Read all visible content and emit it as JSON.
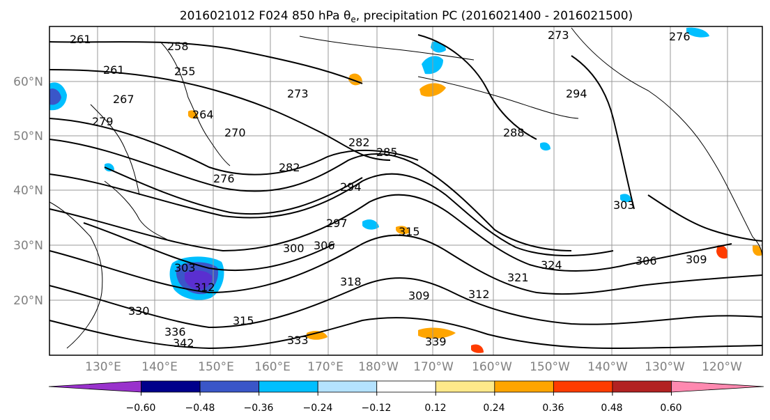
{
  "title": "2016021012 F024 850 hPa θe, precipitation PC (2016021400 - 2016021500)",
  "lat_ticks": [
    "60°N",
    "50°N",
    "40°N",
    "30°N",
    "20°N"
  ],
  "lon_ticks": [
    "130°E",
    "140°E",
    "150°E",
    "160°E",
    "170°E",
    "180°W",
    "170°W",
    "160°W",
    "150°W",
    "140°W",
    "130°W",
    "120°W"
  ],
  "contour_labels": [
    "261",
    "258",
    "255",
    "261",
    "267",
    "264",
    "273",
    "270",
    "279",
    "276",
    "282",
    "282",
    "285",
    "294",
    "288",
    "297",
    "300",
    "306",
    "303",
    "312",
    "315",
    "318",
    "309",
    "312",
    "321",
    "324",
    "330",
    "333",
    "336",
    "339",
    "342",
    "306",
    "309",
    "303",
    "315",
    "276",
    "273",
    "294"
  ],
  "colorbar": {
    "tick_labels": [
      "−0.60",
      "−0.48",
      "−0.36",
      "−0.24",
      "−0.12",
      "0.12",
      "0.24",
      "0.36",
      "0.48",
      "0.60"
    ],
    "colors": [
      "#9932cc",
      "#00008b",
      "#3a56c8",
      "#00bfff",
      "#b4e2ff",
      "#ffffff",
      "#ffe98a",
      "#ffa500",
      "#ff3c00",
      "#b22222",
      "#ff89b0"
    ]
  },
  "colors": {
    "frame": "#000000",
    "grid": "#999999",
    "tick_label": "#808080",
    "contour": "#000000"
  }
}
